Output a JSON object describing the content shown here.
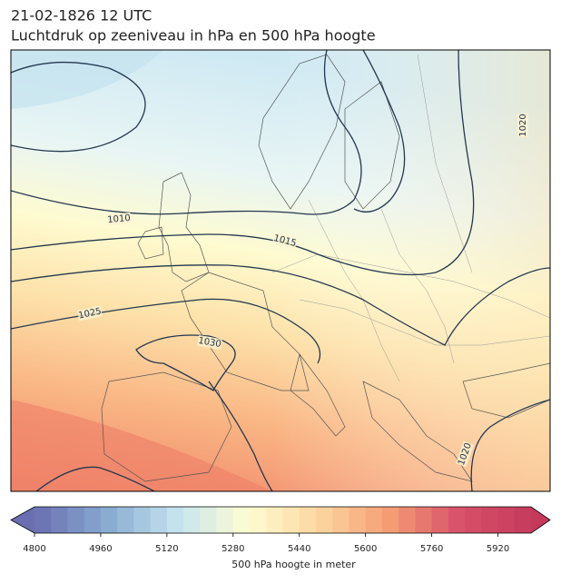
{
  "title": "21-02-1826 12 UTC",
  "subtitle": "Luchtdruk op zeeniveau in hPa en 500 hPa hoogte",
  "isobar_labels": [
    1010,
    1015,
    1025,
    1030,
    1020,
    1020
  ],
  "colorbar": {
    "lim": [
      4800,
      6000
    ],
    "step": 40,
    "ticks": [
      4800,
      4960,
      5120,
      5280,
      5440,
      5600,
      5760,
      5920
    ],
    "colors": [
      "#6a6fb1",
      "#87a9cf",
      "#c4e3ef",
      "#fefdd2",
      "#fdd7a0",
      "#f59d75",
      "#d8506a",
      "#c53a5b"
    ],
    "label": "500 hPa hoogte in meter"
  }
}
